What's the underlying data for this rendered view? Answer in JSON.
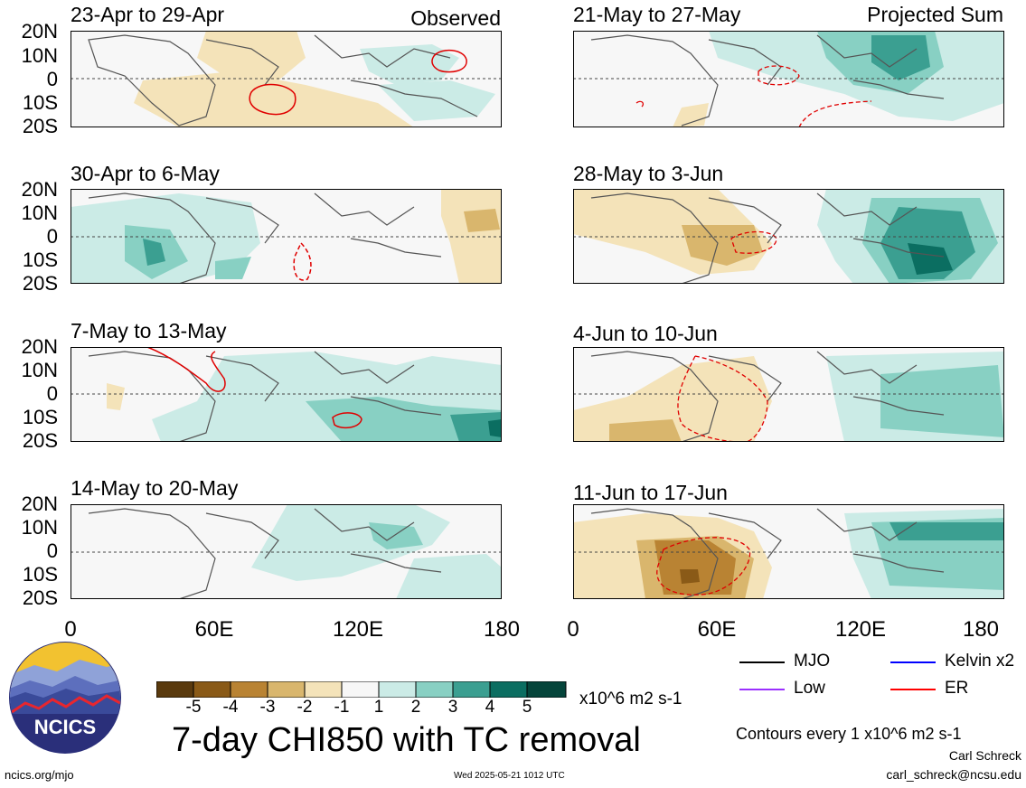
{
  "panels": {
    "left_titles": [
      "23-Apr to 29-Apr",
      "30-Apr to 6-May",
      "7-May to 13-May",
      "14-May to 20-May"
    ],
    "right_titles": [
      "21-May to 27-May",
      "28-May to 3-Jun",
      "4-Jun to 10-Jun",
      "11-Jun to 17-Jun"
    ],
    "observed_label": "Observed",
    "projected_label": "Projected Sum"
  },
  "axes": {
    "lat_labels": [
      "20N",
      "10N",
      "0",
      "10S",
      "20S"
    ],
    "lon_labels": [
      "0",
      "60E",
      "120E",
      "180"
    ]
  },
  "colorbar": {
    "ticks": [
      "-5",
      "-4",
      "-3",
      "-2",
      "-1",
      "1",
      "2",
      "3",
      "4",
      "5"
    ],
    "colors": [
      "#5a3a0e",
      "#8a5a17",
      "#b98333",
      "#d9b66d",
      "#f4e3b9",
      "#f7f7f7",
      "#cbebe6",
      "#88d0c3",
      "#3b9f91",
      "#0b6e61",
      "#05453b"
    ],
    "unit": "x10^6 m2 s-1"
  },
  "legend": {
    "items": [
      {
        "label": "MJO",
        "color": "#000000"
      },
      {
        "label": "Kelvin x2",
        "color": "#0000ff"
      },
      {
        "label": "Low",
        "color": "#9b30ff"
      },
      {
        "label": "ER",
        "color": "#ff0000"
      }
    ],
    "contour_note": "Contours every 1 x10^6 m2 s-1"
  },
  "title": "7-day CHI850 with TC removal",
  "logo_text": "NCICS",
  "footer": {
    "url": "ncics.org/mjo",
    "timestamp": "Wed 2025-05-21 1012 UTC",
    "author": "Carl Schreck",
    "email": "carl_schreck@ncsu.edu"
  }
}
